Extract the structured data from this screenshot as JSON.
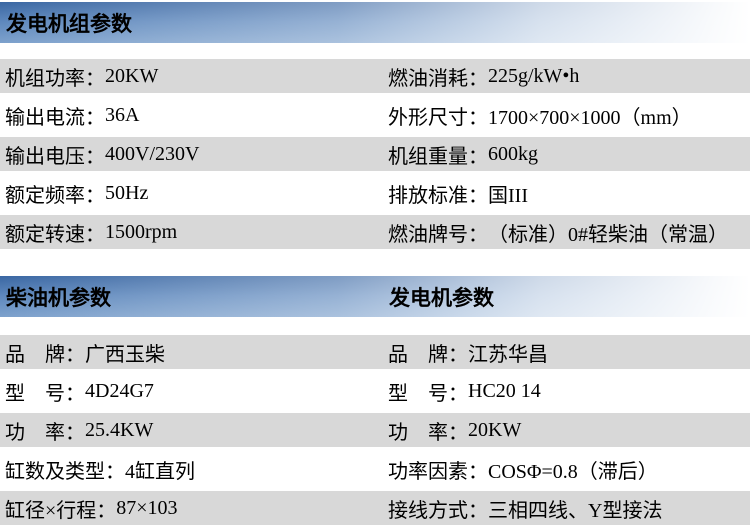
{
  "colors": {
    "header_gradient_top": "#3a67a3",
    "header_gradient_mid": "#5e88bd",
    "header_gradient_bottom": "#7da1cc",
    "header_fade_to": "#ffffff",
    "row_stripe": "#d8d8d8",
    "text": "#000000",
    "page_background": "#ffffff"
  },
  "sections": [
    {
      "title": "发电机组参数"
    },
    {
      "title_left": "柴油机参数",
      "title_right": "发电机参数"
    }
  ],
  "tables": [
    {
      "rows": [
        {
          "cells": [
            {
              "label": "机组功率：",
              "value": "20KW"
            },
            {
              "label": "燃油消耗：",
              "value": "225g/kW•h"
            }
          ]
        },
        {
          "cells": [
            {
              "label": "输出电流：",
              "value": "36A"
            },
            {
              "label": "外形尺寸：",
              "value": "1700×700×1000（mm）"
            }
          ]
        },
        {
          "cells": [
            {
              "label": "输出电压：",
              "value": "400V/230V"
            },
            {
              "label": "机组重量：",
              "value": "600kg"
            }
          ]
        },
        {
          "cells": [
            {
              "label": "额定频率：",
              "value": "50Hz"
            },
            {
              "label": "排放标准：",
              "value": "国III"
            }
          ]
        },
        {
          "cells": [
            {
              "label": "额定转速：",
              "value": "1500rpm"
            },
            {
              "label": "燃油牌号：",
              "value": "（标准）0#轻柴油（常温）"
            }
          ]
        }
      ]
    },
    {
      "rows": [
        {
          "cells": [
            {
              "label": "品　牌：",
              "value": "广西玉柴"
            },
            {
              "label": "品　牌：",
              "value": "江苏华昌"
            }
          ]
        },
        {
          "cells": [
            {
              "label": "型　号：",
              "value": "4D24G7"
            },
            {
              "label": "型　号：",
              "value": "HC20 14"
            }
          ]
        },
        {
          "cells": [
            {
              "label": "功　率：",
              "value": "25.4KW"
            },
            {
              "label": "功　率：",
              "value": "20KW"
            }
          ]
        },
        {
          "cells": [
            {
              "label": "缸数及类型：",
              "value": "4缸直列"
            },
            {
              "label": "功率因素：",
              "value": "COSΦ=0.8（滞后）"
            }
          ]
        },
        {
          "cells": [
            {
              "label": "缸径×行程：",
              "value": "87×103"
            },
            {
              "label": "接线方式：",
              "value": "三相四线、Y型接法"
            }
          ]
        }
      ]
    }
  ]
}
